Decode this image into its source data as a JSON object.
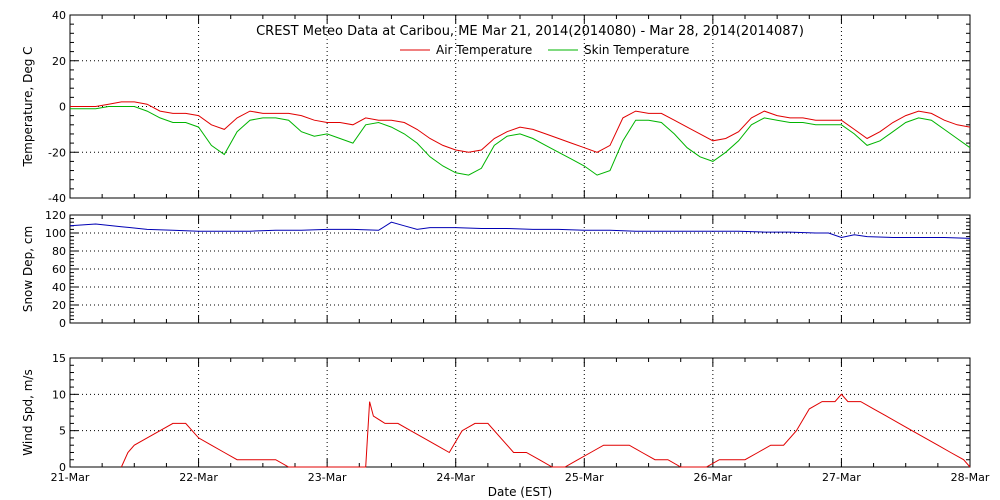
{
  "chart_data": [
    {
      "type": "line",
      "title": "CREST Meteo Data at Caribou, ME   Mar 21, 2014(2014080) - Mar 28, 2014(2014087)",
      "xlabel": "",
      "ylabel": "Temperature, Deg C",
      "xlim": [
        0,
        7
      ],
      "ylim": [
        -40,
        40
      ],
      "yticks": [
        -40,
        -20,
        0,
        20,
        40
      ],
      "grid": true,
      "legend": "top",
      "series": [
        {
          "name": "Air Temperature",
          "color": "#e00000",
          "x": [
            0,
            0.1,
            0.2,
            0.3,
            0.4,
            0.5,
            0.6,
            0.7,
            0.8,
            0.9,
            1.0,
            1.1,
            1.2,
            1.3,
            1.4,
            1.5,
            1.6,
            1.7,
            1.8,
            1.9,
            2.0,
            2.1,
            2.2,
            2.3,
            2.4,
            2.5,
            2.6,
            2.7,
            2.8,
            2.9,
            3.0,
            3.1,
            3.2,
            3.3,
            3.4,
            3.5,
            3.6,
            3.7,
            3.8,
            3.9,
            4.0,
            4.1,
            4.2,
            4.3,
            4.4,
            4.5,
            4.6,
            4.7,
            4.8,
            4.9,
            5.0,
            5.1,
            5.2,
            5.3,
            5.4,
            5.5,
            5.6,
            5.7,
            5.8,
            5.9,
            6.0,
            6.1,
            6.2,
            6.3,
            6.4,
            6.5,
            6.6,
            6.7,
            6.8,
            6.9,
            7.0
          ],
          "y": [
            0,
            0,
            0,
            1,
            2,
            2,
            1,
            -2,
            -3,
            -3,
            -4,
            -8,
            -10,
            -5,
            -2,
            -3,
            -3,
            -3,
            -4,
            -6,
            -7,
            -7,
            -8,
            -5,
            -6,
            -6,
            -7,
            -10,
            -14,
            -17,
            -19,
            -20,
            -19,
            -14,
            -11,
            -9,
            -10,
            -12,
            -14,
            -16,
            -18,
            -20,
            -17,
            -5,
            -2,
            -3,
            -3,
            -6,
            -9,
            -12,
            -15,
            -14,
            -11,
            -5,
            -2,
            -4,
            -5,
            -5,
            -6,
            -6,
            -6,
            -10,
            -14,
            -11,
            -7,
            -4,
            -2,
            -3,
            -6,
            -8,
            -9
          ]
        },
        {
          "name": "Skin Temperature",
          "color": "#00b400",
          "x": [
            0,
            0.1,
            0.2,
            0.3,
            0.4,
            0.5,
            0.6,
            0.7,
            0.8,
            0.9,
            1.0,
            1.1,
            1.2,
            1.3,
            1.4,
            1.5,
            1.6,
            1.7,
            1.8,
            1.9,
            2.0,
            2.1,
            2.2,
            2.3,
            2.4,
            2.5,
            2.6,
            2.7,
            2.8,
            2.9,
            3.0,
            3.1,
            3.2,
            3.3,
            3.4,
            3.5,
            3.6,
            3.7,
            3.8,
            3.9,
            4.0,
            4.1,
            4.2,
            4.3,
            4.4,
            4.5,
            4.6,
            4.7,
            4.8,
            4.9,
            5.0,
            5.1,
            5.2,
            5.3,
            5.4,
            5.5,
            5.6,
            5.7,
            5.8,
            5.9,
            6.0,
            6.1,
            6.2,
            6.3,
            6.4,
            6.5,
            6.6,
            6.7,
            6.8,
            6.9,
            7.0
          ],
          "y": [
            -1,
            -1,
            -1,
            0,
            0,
            0,
            -2,
            -5,
            -7,
            -7,
            -9,
            -17,
            -21,
            -11,
            -6,
            -5,
            -5,
            -6,
            -11,
            -13,
            -12,
            -14,
            -16,
            -8,
            -7,
            -9,
            -12,
            -16,
            -22,
            -26,
            -29,
            -30,
            -27,
            -17,
            -13,
            -12,
            -14,
            -17,
            -20,
            -23,
            -26,
            -30,
            -28,
            -15,
            -6,
            -6,
            -7,
            -12,
            -18,
            -22,
            -24,
            -20,
            -15,
            -8,
            -5,
            -6,
            -7,
            -7,
            -8,
            -8,
            -8,
            -12,
            -17,
            -15,
            -11,
            -7,
            -5,
            -6,
            -10,
            -14,
            -18
          ]
        }
      ]
    },
    {
      "type": "line",
      "title": "",
      "xlabel": "",
      "ylabel": "Snow Dep, cm",
      "xlim": [
        0,
        7
      ],
      "ylim": [
        0,
        120
      ],
      "yticks": [
        0,
        20,
        40,
        60,
        80,
        100,
        120
      ],
      "grid": true,
      "series": [
        {
          "name": "",
          "color": "#0000b4",
          "x": [
            0,
            0.2,
            0.4,
            0.6,
            0.8,
            1.0,
            1.2,
            1.4,
            1.6,
            1.8,
            2.0,
            2.2,
            2.4,
            2.5,
            2.6,
            2.7,
            2.8,
            3.0,
            3.2,
            3.4,
            3.6,
            3.8,
            4.0,
            4.2,
            4.4,
            4.6,
            4.8,
            5.0,
            5.2,
            5.4,
            5.6,
            5.8,
            5.9,
            6.0,
            6.1,
            6.2,
            6.4,
            6.6,
            6.8,
            7.0
          ],
          "y": [
            108,
            110,
            107,
            104,
            103,
            102,
            102,
            102,
            103,
            103,
            104,
            104,
            103,
            112,
            108,
            104,
            106,
            106,
            105,
            105,
            104,
            104,
            103,
            103,
            102,
            102,
            102,
            102,
            102,
            101,
            101,
            100,
            100,
            95,
            98,
            96,
            95,
            95,
            95,
            94
          ]
        }
      ]
    },
    {
      "type": "line",
      "title": "",
      "xlabel": "Date (EST)",
      "ylabel": "Wind Spd, m/s",
      "xlim": [
        0,
        7
      ],
      "ylim": [
        0,
        15
      ],
      "yticks": [
        0,
        5,
        10,
        15
      ],
      "xticks": [
        "21-Mar",
        "22-Mar",
        "23-Mar",
        "24-Mar",
        "25-Mar",
        "26-Mar",
        "27-Mar",
        "28-Mar"
      ],
      "grid": true,
      "series": [
        {
          "name": "",
          "color": "#e00000",
          "x": [
            0.4,
            0.45,
            0.5,
            0.6,
            0.7,
            0.8,
            0.9,
            1.0,
            1.1,
            1.2,
            1.3,
            1.4,
            1.5,
            1.6,
            1.7,
            1.8,
            2.3,
            2.33,
            2.36,
            2.45,
            2.55,
            2.65,
            2.75,
            2.85,
            2.95,
            3.05,
            3.15,
            3.25,
            3.35,
            3.45,
            3.55,
            3.65,
            3.75,
            3.85,
            3.95,
            4.05,
            4.15,
            4.25,
            4.35,
            4.45,
            4.55,
            4.65,
            4.75,
            4.85,
            4.95,
            5.05,
            5.15,
            5.25,
            5.35,
            5.45,
            5.55,
            5.65,
            5.75,
            5.85,
            5.95,
            6.0,
            6.05,
            6.15,
            6.25,
            6.35,
            6.45,
            6.55,
            6.65,
            6.75,
            6.85,
            6.95,
            7.0
          ],
          "y": [
            0,
            2,
            3,
            4,
            5,
            6,
            6,
            4,
            3,
            2,
            1,
            1,
            1,
            1,
            0,
            0,
            0,
            9,
            7,
            6,
            6,
            5,
            4,
            3,
            2,
            5,
            6,
            6,
            4,
            2,
            2,
            1,
            0,
            0,
            1,
            2,
            3,
            3,
            3,
            2,
            1,
            1,
            0,
            0,
            0,
            1,
            1,
            1,
            2,
            3,
            3,
            5,
            8,
            9,
            9,
            10,
            9,
            9,
            8,
            7,
            6,
            5,
            4,
            3,
            2,
            1,
            0
          ]
        }
      ]
    }
  ],
  "legend": {
    "air_label": "Air Temperature",
    "skin_label": "Skin Temperature",
    "air_color": "#e00000",
    "skin_color": "#00b400"
  },
  "axis_colors": {
    "frame": "#000000",
    "grid": "#000000"
  }
}
